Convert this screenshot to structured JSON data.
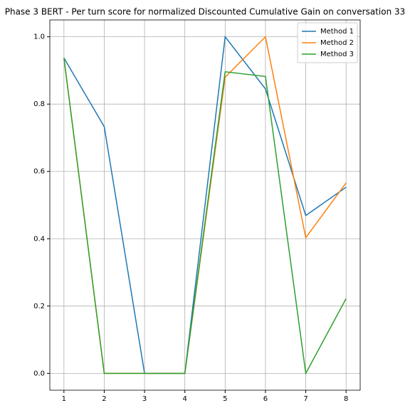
{
  "chart_data": {
    "type": "line",
    "title": "Phase 3 BERT - Per turn score for normalized Discounted Cumulative Gain on conversation 33",
    "x": [
      1,
      2,
      3,
      4,
      5,
      6,
      7,
      8
    ],
    "series": [
      {
        "name": "Method 1",
        "color": "#1f77b4",
        "values": [
          0.937,
          0.733,
          0,
          0,
          1.0,
          0.845,
          0.469,
          0.553
        ]
      },
      {
        "name": "Method 2",
        "color": "#ff7f0e",
        "values": [
          0.937,
          0,
          0,
          0,
          0.88,
          1.0,
          0.403,
          0.566
        ]
      },
      {
        "name": "Method 3",
        "color": "#2ca02c",
        "values": [
          0.937,
          0,
          0,
          0,
          0.896,
          0.882,
          0,
          0.222
        ]
      }
    ],
    "xlim": [
      0.65,
      8.35
    ],
    "xticks": [
      1,
      2,
      3,
      4,
      5,
      6,
      7,
      8
    ],
    "ylim": [
      -0.05,
      1.05
    ],
    "yticks": [
      {
        "value": 0,
        "label": "0.0"
      },
      0.2,
      0.4,
      0.6,
      0.8,
      {
        "value": 1,
        "label": "1.0"
      }
    ],
    "grid": true,
    "legend": "upper-right"
  }
}
